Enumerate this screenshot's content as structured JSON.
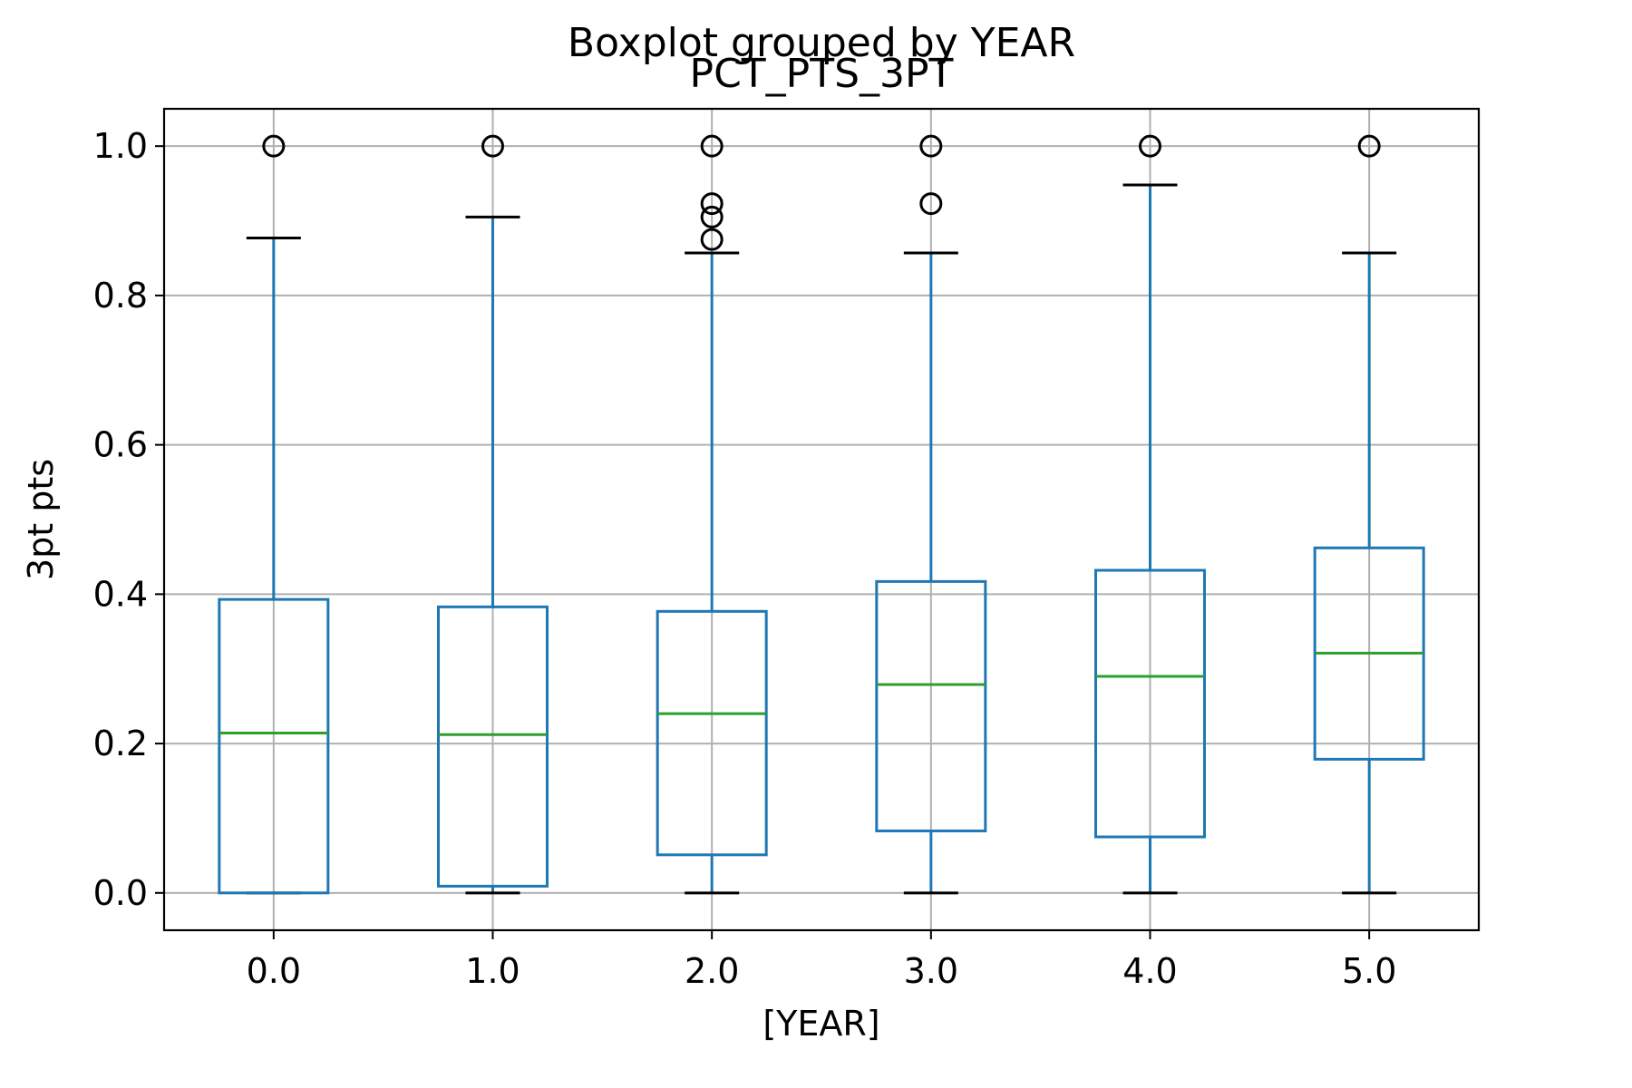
{
  "chart_data": {
    "type": "box",
    "suptitle": "Boxplot grouped by YEAR",
    "title": "PCT_PTS_3PT",
    "xlabel": "[YEAR]",
    "ylabel": "3pt pts",
    "ylim": [
      -0.05,
      1.05
    ],
    "yticks": [
      "0.0",
      "0.2",
      "0.4",
      "0.6",
      "0.8",
      "1.0"
    ],
    "grid": true,
    "colors": {
      "box": "#1f77b4",
      "median": "#2ca02c",
      "cap": "#000000",
      "flier": "#000000",
      "grid": "#b0b0b0"
    },
    "categories": [
      "0.0",
      "1.0",
      "2.0",
      "3.0",
      "4.0",
      "5.0"
    ],
    "boxes": [
      {
        "category": "0.0",
        "whislo": 0.0,
        "q1": 0.0,
        "median": 0.214,
        "q3": 0.393,
        "whishi": 0.877,
        "fliers": [
          1.0
        ]
      },
      {
        "category": "1.0",
        "whislo": 0.0,
        "q1": 0.009,
        "median": 0.212,
        "q3": 0.383,
        "whishi": 0.905,
        "fliers": [
          1.0
        ]
      },
      {
        "category": "2.0",
        "whislo": 0.0,
        "q1": 0.051,
        "median": 0.24,
        "q3": 0.377,
        "whishi": 0.857,
        "fliers": [
          0.875,
          0.905,
          0.923,
          1.0
        ]
      },
      {
        "category": "3.0",
        "whislo": 0.0,
        "q1": 0.083,
        "median": 0.279,
        "q3": 0.417,
        "whishi": 0.857,
        "fliers": [
          0.923,
          1.0
        ]
      },
      {
        "category": "4.0",
        "whislo": 0.0,
        "q1": 0.075,
        "median": 0.29,
        "q3": 0.432,
        "whishi": 0.948,
        "fliers": [
          1.0
        ]
      },
      {
        "category": "5.0",
        "whislo": 0.0,
        "q1": 0.179,
        "median": 0.321,
        "q3": 0.462,
        "whishi": 0.857,
        "fliers": [
          1.0
        ]
      }
    ]
  }
}
